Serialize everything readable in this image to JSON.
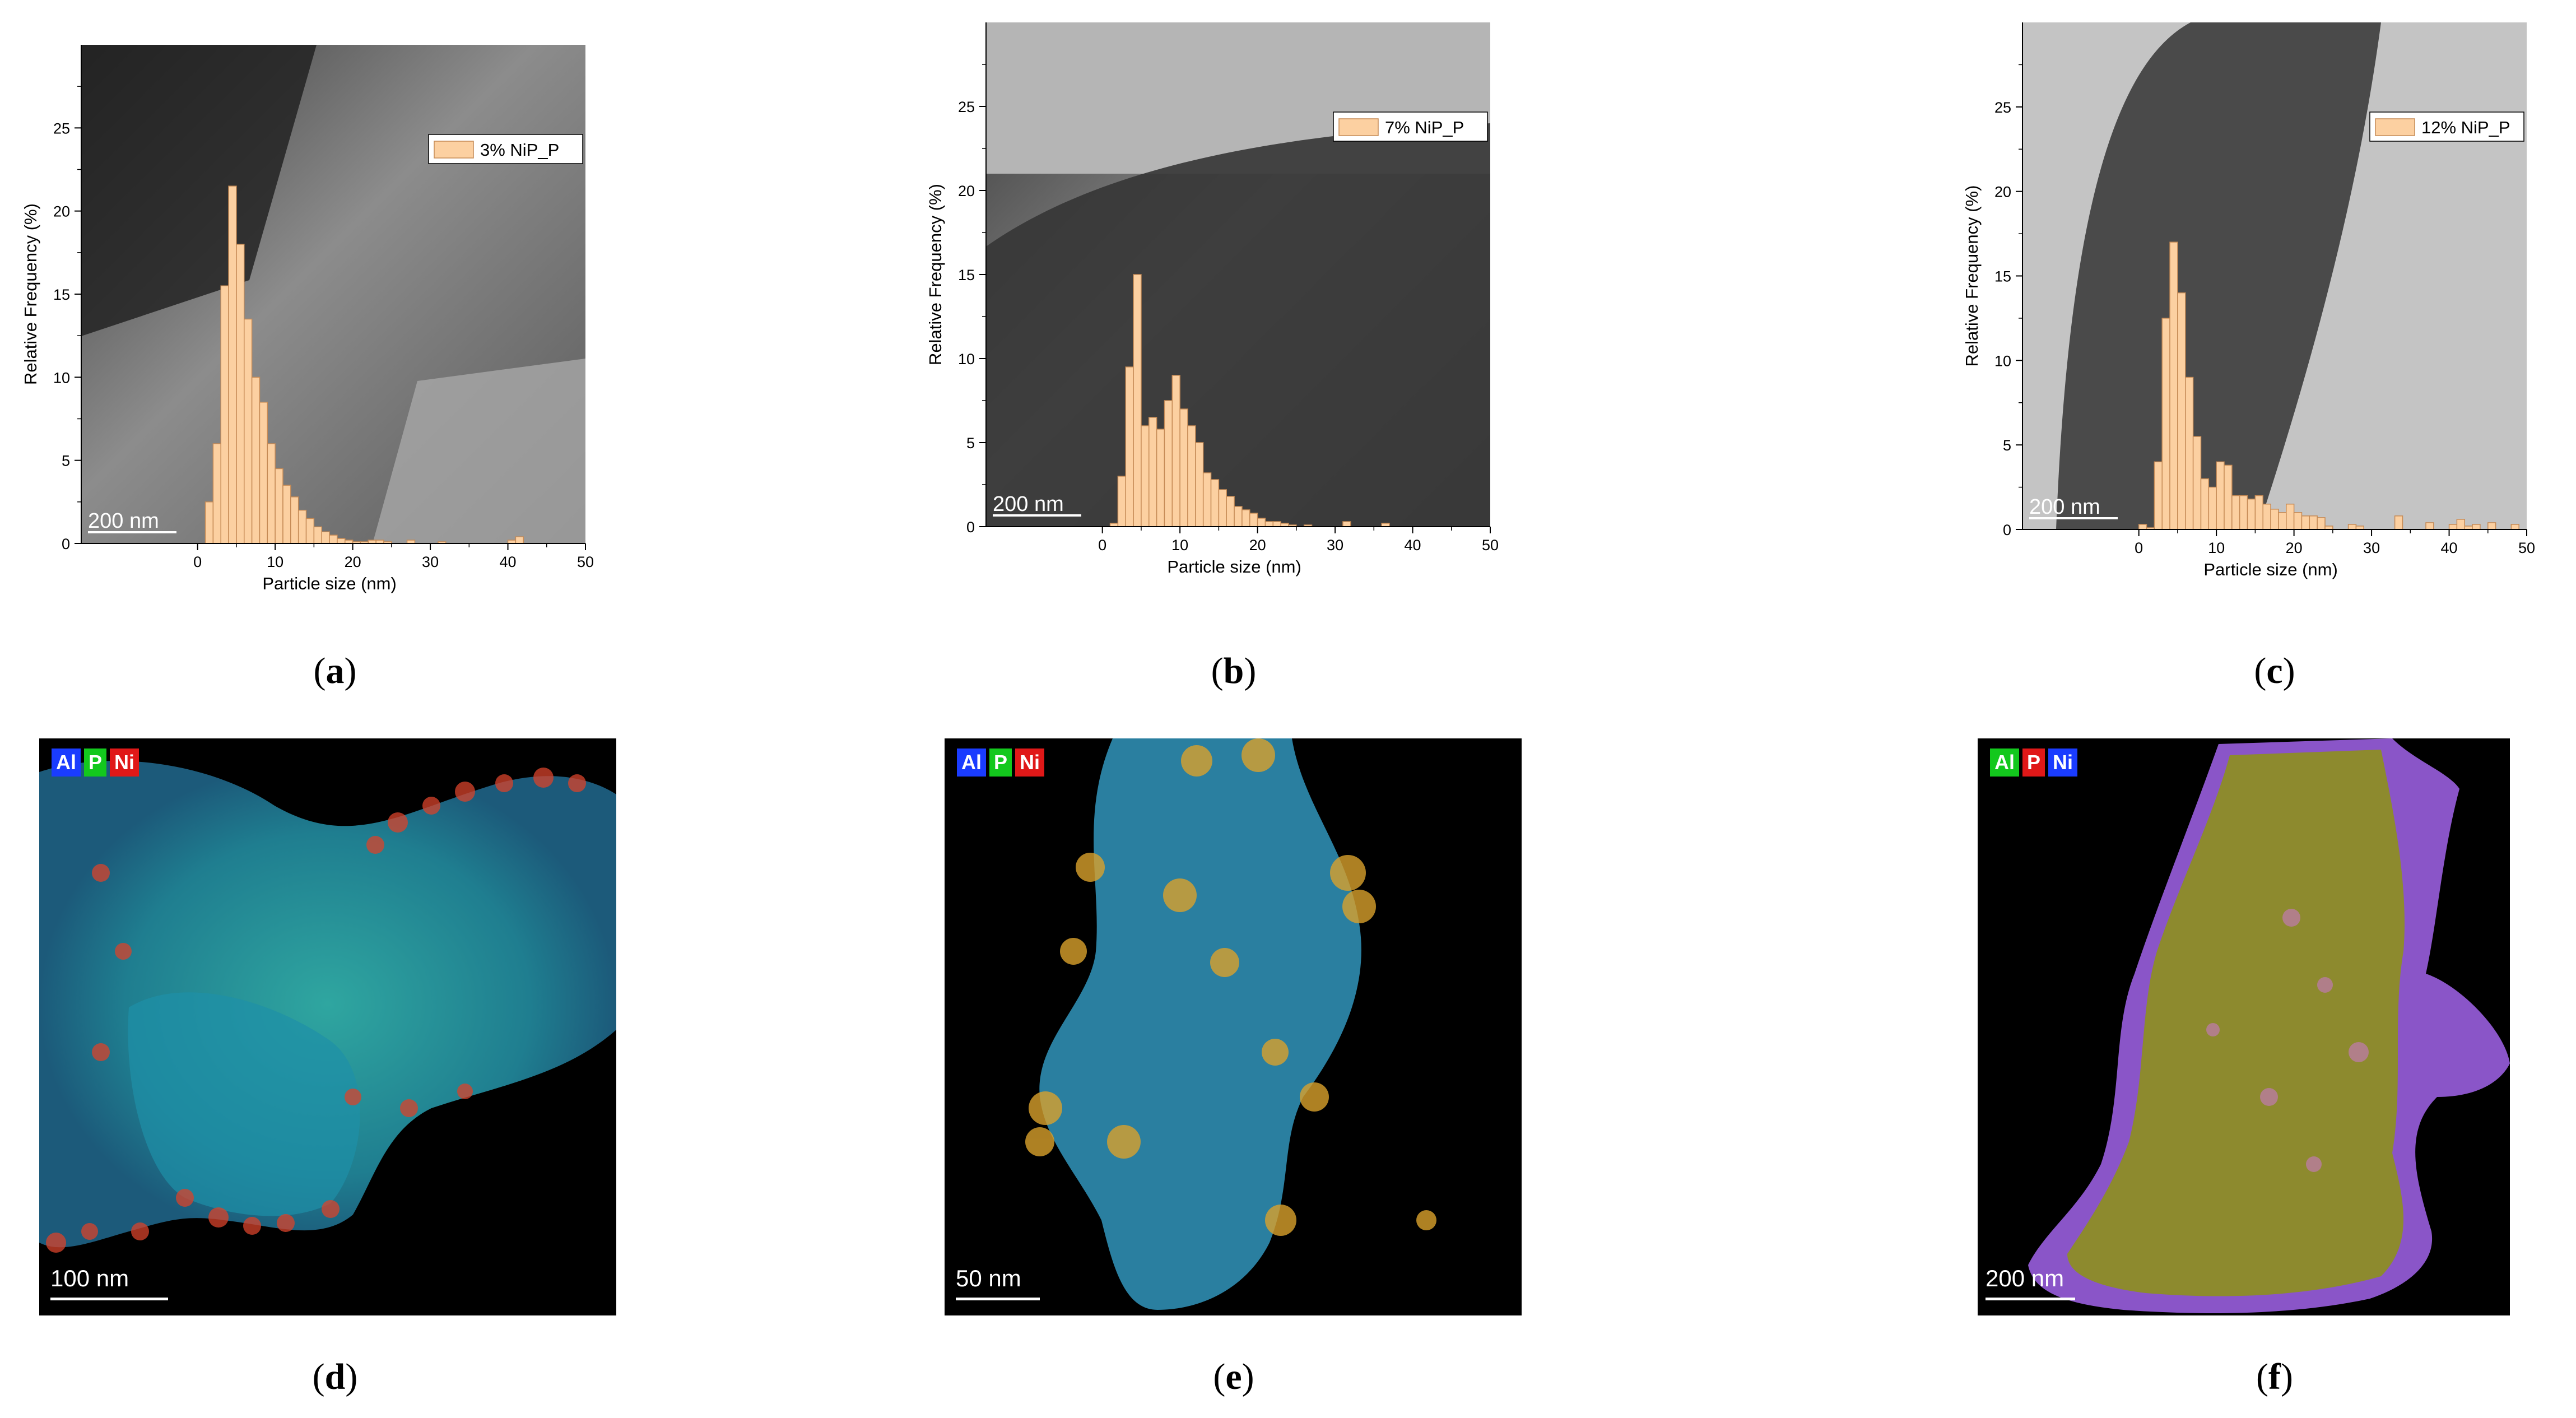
{
  "chart_data": [
    {
      "type": "bar",
      "panel": "a",
      "legend": "3% NiP_P",
      "xlabel": "Particle size (nm)",
      "ylabel": "Relative Frequency (%)",
      "scale_bar": "200 nm",
      "xlim": [
        -15,
        50
      ],
      "ylim": [
        0,
        30
      ],
      "xticks": [
        0,
        10,
        20,
        30,
        40,
        50
      ],
      "yticks": [
        0,
        5,
        10,
        15,
        20,
        25
      ],
      "bin_width": 1,
      "x": [
        0.5,
        1.5,
        2.5,
        3.5,
        4.5,
        5.5,
        6.5,
        7.5,
        8.5,
        9.5,
        10.5,
        11.5,
        12.5,
        13.5,
        14.5,
        15.5,
        16.5,
        17.5,
        18.5,
        19.5,
        20.5,
        21.5,
        22.5,
        23.5,
        24.5,
        25.5,
        26.5,
        27.5,
        28.5,
        29.5,
        30.5,
        31.5,
        32.5,
        33.5,
        34.5,
        35.5,
        36.5,
        37.5,
        38.5,
        39.5,
        40.5,
        41.5,
        42.5,
        43.5,
        44.5,
        45.5,
        46.5,
        47.5,
        48.5,
        49.5
      ],
      "values": [
        0,
        2.5,
        6,
        15.5,
        21.5,
        18,
        13.5,
        10,
        8.5,
        6,
        4.5,
        3.5,
        2.8,
        2,
        1.5,
        1,
        0.7,
        0.5,
        0.3,
        0.2,
        0.1,
        0.1,
        0.2,
        0.2,
        0.1,
        0,
        0,
        0.2,
        0,
        0,
        0,
        0.1,
        0,
        0,
        0,
        0,
        0,
        0,
        0,
        0,
        0.2,
        0.4,
        0,
        0,
        0,
        0,
        0,
        0,
        0,
        0
      ]
    },
    {
      "type": "bar",
      "panel": "b",
      "legend": "7% NiP_P",
      "xlabel": "Particle size (nm)",
      "ylabel": "Relative Frequency (%)",
      "scale_bar": "200 nm",
      "xlim": [
        -15,
        50
      ],
      "ylim": [
        0,
        30
      ],
      "xticks": [
        0,
        10,
        20,
        30,
        40,
        50
      ],
      "yticks": [
        0,
        5,
        10,
        15,
        20,
        25
      ],
      "bin_width": 1,
      "x": [
        0.5,
        1.5,
        2.5,
        3.5,
        4.5,
        5.5,
        6.5,
        7.5,
        8.5,
        9.5,
        10.5,
        11.5,
        12.5,
        13.5,
        14.5,
        15.5,
        16.5,
        17.5,
        18.5,
        19.5,
        20.5,
        21.5,
        22.5,
        23.5,
        24.5,
        25.5,
        26.5,
        27.5,
        28.5,
        29.5,
        30.5,
        31.5,
        32.5,
        33.5,
        34.5,
        35.5,
        36.5,
        37.5,
        38.5,
        39.5,
        40.5,
        41.5,
        42.5,
        43.5,
        44.5,
        45.5,
        46.5,
        47.5,
        48.5,
        49.5
      ],
      "values": [
        0,
        0.2,
        3,
        9.5,
        15,
        6,
        6.5,
        5.8,
        7.5,
        9,
        7,
        6,
        5,
        3.2,
        2.8,
        2.2,
        1.8,
        1.2,
        1,
        0.8,
        0.5,
        0.3,
        0.3,
        0.2,
        0.1,
        0,
        0.1,
        0,
        0,
        0,
        0,
        0.3,
        0,
        0,
        0,
        0,
        0.2,
        0,
        0,
        0,
        0,
        0,
        0,
        0,
        0,
        0,
        0,
        0,
        0,
        0
      ]
    },
    {
      "type": "bar",
      "panel": "c",
      "legend": "12% NiP_P",
      "xlabel": "Particle size (nm)",
      "ylabel": "Relative Frequency (%)",
      "scale_bar": "200 nm",
      "xlim": [
        -15,
        50
      ],
      "ylim": [
        0,
        30
      ],
      "xticks": [
        0,
        10,
        20,
        30,
        40,
        50
      ],
      "yticks": [
        0,
        5,
        10,
        15,
        20,
        25
      ],
      "bin_width": 1,
      "x": [
        0.5,
        1.5,
        2.5,
        3.5,
        4.5,
        5.5,
        6.5,
        7.5,
        8.5,
        9.5,
        10.5,
        11.5,
        12.5,
        13.5,
        14.5,
        15.5,
        16.5,
        17.5,
        18.5,
        19.5,
        20.5,
        21.5,
        22.5,
        23.5,
        24.5,
        25.5,
        26.5,
        27.5,
        28.5,
        29.5,
        30.5,
        31.5,
        32.5,
        33.5,
        34.5,
        35.5,
        36.5,
        37.5,
        38.5,
        39.5,
        40.5,
        41.5,
        42.5,
        43.5,
        44.5,
        45.5,
        46.5,
        47.5,
        48.5,
        49.5
      ],
      "values": [
        0.3,
        0.1,
        4,
        12.5,
        17,
        14,
        9,
        5.5,
        3,
        2.5,
        4,
        3.8,
        2,
        2,
        1.8,
        2,
        1.5,
        1.2,
        1,
        1.5,
        1,
        0.8,
        0.8,
        0.7,
        0.2,
        0,
        0,
        0.3,
        0.2,
        0,
        0,
        0,
        0,
        0.8,
        0,
        0,
        0,
        0.4,
        0,
        0,
        0.3,
        0.6,
        0.2,
        0.3,
        0,
        0.4,
        0,
        0,
        0.3,
        0
      ]
    }
  ],
  "maps": [
    {
      "panel": "d",
      "scale_bar": "100 nm",
      "legend": [
        {
          "label": "Al",
          "color": "#1a3cff"
        },
        {
          "label": "P",
          "color": "#13c81d"
        },
        {
          "label": "Ni",
          "color": "#e01818"
        }
      ]
    },
    {
      "panel": "e",
      "scale_bar": "50 nm",
      "legend": [
        {
          "label": "Al",
          "color": "#1a3cff"
        },
        {
          "label": "P",
          "color": "#13c81d"
        },
        {
          "label": "Ni",
          "color": "#e01818"
        }
      ]
    },
    {
      "panel": "f",
      "scale_bar": "200 nm",
      "legend": [
        {
          "label": "Al",
          "color": "#13c81d"
        },
        {
          "label": "P",
          "color": "#e01818"
        },
        {
          "label": "Ni",
          "color": "#1a3cff"
        }
      ]
    }
  ],
  "captions": {
    "a": "a",
    "b": "b",
    "c": "c",
    "d": "d",
    "e": "e",
    "f": "f"
  },
  "colors": {
    "bar_fill": "#fcd0a1",
    "bar_stroke": "#c58a55"
  }
}
